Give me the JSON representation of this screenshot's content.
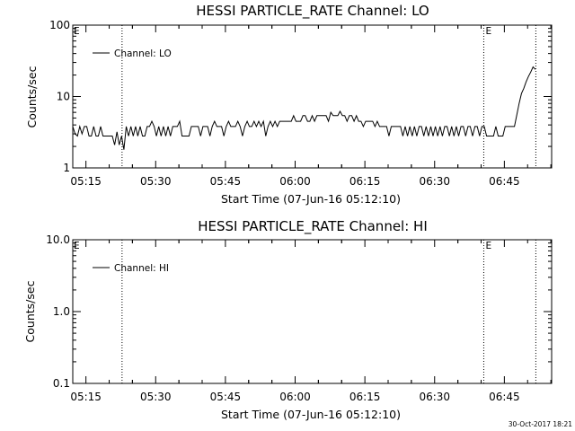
{
  "footer": "30-Oct-2017 18:21",
  "chart_data": [
    {
      "type": "line",
      "title": "HESSI PARTICLE_RATE Channel: LO",
      "xlabel": "Start Time (07-Jun-16 05:12:10)",
      "ylabel": "Counts/sec",
      "y_scale": "log",
      "ylim": [
        1,
        100
      ],
      "y_ticks": [
        "1",
        "10",
        "100"
      ],
      "x_range_min_since_start": [
        0,
        103
      ],
      "x_ticks": [
        {
          "label": "05:15",
          "min": 2.83
        },
        {
          "label": "05:30",
          "min": 17.83
        },
        {
          "label": "05:45",
          "min": 32.83
        },
        {
          "label": "06:00",
          "min": 47.83
        },
        {
          "label": "06:15",
          "min": 62.83
        },
        {
          "label": "06:30",
          "min": 77.83
        },
        {
          "label": "06:45",
          "min": 92.83
        }
      ],
      "markers": [
        {
          "min": 10.6,
          "label": ""
        },
        {
          "min": 88.4,
          "label": "E"
        },
        {
          "min": 99.6,
          "label": ""
        }
      ],
      "edge_label_left": "E",
      "series": [
        {
          "name": "Channel: LO",
          "points": [
            [
              0.0,
              3.8
            ],
            [
              0.5,
              3.0
            ],
            [
              1.0,
              2.8
            ],
            [
              1.5,
              3.8
            ],
            [
              2.0,
              3.0
            ],
            [
              2.5,
              3.8
            ],
            [
              3.0,
              3.8
            ],
            [
              3.5,
              2.8
            ],
            [
              4.0,
              2.8
            ],
            [
              4.5,
              3.8
            ],
            [
              5.0,
              2.8
            ],
            [
              5.5,
              2.8
            ],
            [
              6.0,
              3.8
            ],
            [
              6.5,
              2.8
            ],
            [
              7.0,
              2.8
            ],
            [
              7.5,
              2.8
            ],
            [
              8.0,
              2.8
            ],
            [
              8.5,
              2.8
            ],
            [
              9.0,
              2.1
            ],
            [
              9.5,
              3.2
            ],
            [
              10.0,
              2.1
            ],
            [
              10.5,
              2.8
            ],
            [
              11.0,
              1.8
            ],
            [
              11.5,
              3.8
            ],
            [
              12.0,
              2.8
            ],
            [
              12.5,
              3.8
            ],
            [
              13.0,
              2.8
            ],
            [
              13.5,
              3.8
            ],
            [
              14.0,
              2.8
            ],
            [
              14.5,
              3.8
            ],
            [
              15.0,
              2.8
            ],
            [
              15.5,
              2.8
            ],
            [
              16.0,
              3.8
            ],
            [
              16.5,
              3.8
            ],
            [
              17.0,
              4.5
            ],
            [
              17.5,
              3.8
            ],
            [
              18.0,
              2.8
            ],
            [
              18.5,
              3.8
            ],
            [
              19.0,
              2.8
            ],
            [
              19.5,
              3.8
            ],
            [
              20.0,
              2.8
            ],
            [
              20.5,
              3.8
            ],
            [
              21.0,
              2.8
            ],
            [
              21.5,
              3.8
            ],
            [
              22.0,
              3.8
            ],
            [
              22.5,
              3.8
            ],
            [
              23.0,
              4.5
            ],
            [
              23.5,
              2.8
            ],
            [
              24.0,
              2.8
            ],
            [
              24.5,
              2.8
            ],
            [
              25.0,
              2.8
            ],
            [
              25.5,
              3.8
            ],
            [
              26.0,
              3.8
            ],
            [
              26.5,
              3.8
            ],
            [
              27.0,
              3.8
            ],
            [
              27.5,
              2.8
            ],
            [
              28.0,
              3.8
            ],
            [
              28.5,
              3.8
            ],
            [
              29.0,
              3.8
            ],
            [
              29.5,
              2.8
            ],
            [
              30.0,
              3.8
            ],
            [
              30.5,
              4.5
            ],
            [
              31.0,
              3.8
            ],
            [
              31.5,
              3.8
            ],
            [
              32.0,
              3.8
            ],
            [
              32.5,
              2.8
            ],
            [
              33.0,
              3.8
            ],
            [
              33.5,
              4.5
            ],
            [
              34.0,
              3.8
            ],
            [
              34.5,
              3.8
            ],
            [
              35.0,
              3.8
            ],
            [
              35.5,
              4.5
            ],
            [
              36.0,
              3.8
            ],
            [
              36.5,
              2.8
            ],
            [
              37.0,
              3.8
            ],
            [
              37.5,
              4.5
            ],
            [
              38.0,
              3.8
            ],
            [
              38.5,
              3.8
            ],
            [
              39.0,
              4.5
            ],
            [
              39.5,
              3.8
            ],
            [
              40.0,
              4.5
            ],
            [
              40.5,
              3.8
            ],
            [
              41.0,
              4.5
            ],
            [
              41.5,
              2.8
            ],
            [
              42.0,
              3.8
            ],
            [
              42.5,
              4.5
            ],
            [
              43.0,
              3.8
            ],
            [
              43.5,
              4.5
            ],
            [
              44.0,
              3.8
            ],
            [
              44.5,
              4.5
            ],
            [
              45.0,
              4.5
            ],
            [
              45.5,
              4.5
            ],
            [
              46.0,
              4.5
            ],
            [
              46.5,
              4.5
            ],
            [
              47.0,
              4.5
            ],
            [
              47.5,
              5.4
            ],
            [
              48.0,
              4.5
            ],
            [
              48.5,
              4.5
            ],
            [
              49.0,
              4.5
            ],
            [
              49.5,
              5.4
            ],
            [
              50.0,
              5.4
            ],
            [
              50.5,
              4.5
            ],
            [
              51.0,
              4.5
            ],
            [
              51.5,
              5.4
            ],
            [
              52.0,
              4.5
            ],
            [
              52.5,
              5.4
            ],
            [
              53.0,
              5.4
            ],
            [
              53.5,
              5.4
            ],
            [
              54.0,
              5.4
            ],
            [
              54.5,
              5.4
            ],
            [
              55.0,
              4.5
            ],
            [
              55.5,
              6.0
            ],
            [
              56.0,
              5.4
            ],
            [
              56.5,
              5.4
            ],
            [
              57.0,
              5.4
            ],
            [
              57.5,
              6.2
            ],
            [
              58.0,
              5.4
            ],
            [
              58.5,
              5.4
            ],
            [
              59.0,
              4.5
            ],
            [
              59.5,
              5.4
            ],
            [
              60.0,
              5.4
            ],
            [
              60.5,
              4.5
            ],
            [
              61.0,
              5.4
            ],
            [
              61.5,
              4.5
            ],
            [
              62.0,
              4.5
            ],
            [
              62.5,
              3.8
            ],
            [
              63.0,
              4.5
            ],
            [
              63.5,
              4.5
            ],
            [
              64.0,
              4.5
            ],
            [
              64.5,
              4.5
            ],
            [
              65.0,
              3.8
            ],
            [
              65.5,
              4.5
            ],
            [
              66.0,
              3.8
            ],
            [
              66.5,
              3.8
            ],
            [
              67.0,
              3.8
            ],
            [
              67.5,
              3.8
            ],
            [
              68.0,
              2.8
            ],
            [
              68.5,
              3.8
            ],
            [
              69.0,
              3.8
            ],
            [
              69.5,
              3.8
            ],
            [
              70.0,
              3.8
            ],
            [
              70.5,
              3.8
            ],
            [
              71.0,
              2.8
            ],
            [
              71.5,
              3.8
            ],
            [
              72.0,
              2.8
            ],
            [
              72.5,
              3.8
            ],
            [
              73.0,
              2.8
            ],
            [
              73.5,
              3.8
            ],
            [
              74.0,
              2.8
            ],
            [
              74.5,
              3.8
            ],
            [
              75.0,
              3.8
            ],
            [
              75.5,
              2.8
            ],
            [
              76.0,
              3.8
            ],
            [
              76.5,
              2.8
            ],
            [
              77.0,
              3.8
            ],
            [
              77.5,
              2.8
            ],
            [
              78.0,
              3.8
            ],
            [
              78.5,
              2.8
            ],
            [
              79.0,
              3.8
            ],
            [
              79.5,
              2.8
            ],
            [
              80.0,
              3.8
            ],
            [
              80.5,
              3.8
            ],
            [
              81.0,
              2.8
            ],
            [
              81.5,
              3.8
            ],
            [
              82.0,
              2.8
            ],
            [
              82.5,
              3.8
            ],
            [
              83.0,
              2.8
            ],
            [
              83.5,
              3.8
            ],
            [
              84.0,
              3.8
            ],
            [
              84.5,
              2.8
            ],
            [
              85.0,
              3.8
            ],
            [
              85.5,
              3.8
            ],
            [
              86.0,
              2.8
            ],
            [
              86.5,
              3.8
            ],
            [
              87.0,
              3.8
            ],
            [
              87.5,
              2.8
            ],
            [
              88.0,
              3.8
            ],
            [
              88.5,
              3.8
            ],
            [
              89.0,
              2.8
            ],
            [
              89.5,
              2.8
            ],
            [
              90.0,
              2.8
            ],
            [
              90.5,
              2.8
            ],
            [
              91.0,
              3.8
            ],
            [
              91.5,
              2.8
            ],
            [
              92.0,
              2.8
            ],
            [
              92.5,
              2.8
            ],
            [
              93.0,
              3.8
            ],
            [
              93.5,
              3.8
            ],
            [
              94.0,
              3.8
            ],
            [
              94.5,
              3.8
            ],
            [
              95.0,
              3.8
            ],
            [
              95.5,
              5.5
            ],
            [
              96.0,
              8.0
            ],
            [
              96.5,
              11.0
            ],
            [
              97.0,
              13.0
            ],
            [
              97.5,
              16.0
            ],
            [
              98.0,
              19.0
            ],
            [
              98.5,
              22.0
            ],
            [
              99.0,
              26.0
            ],
            [
              99.5,
              24.0
            ]
          ]
        }
      ]
    },
    {
      "type": "line",
      "title": "HESSI PARTICLE_RATE Channel: HI",
      "xlabel": "Start Time (07-Jun-16 05:12:10)",
      "ylabel": "Counts/sec",
      "y_scale": "log",
      "ylim": [
        0.1,
        10
      ],
      "y_ticks": [
        "0.1",
        "1.0",
        "10.0"
      ],
      "x_range_min_since_start": [
        0,
        103
      ],
      "x_ticks": [
        {
          "label": "05:15",
          "min": 2.83
        },
        {
          "label": "05:30",
          "min": 17.83
        },
        {
          "label": "05:45",
          "min": 32.83
        },
        {
          "label": "06:00",
          "min": 47.83
        },
        {
          "label": "06:15",
          "min": 62.83
        },
        {
          "label": "06:30",
          "min": 77.83
        },
        {
          "label": "06:45",
          "min": 92.83
        }
      ],
      "markers": [
        {
          "min": 10.6,
          "label": ""
        },
        {
          "min": 88.4,
          "label": "E"
        },
        {
          "min": 99.6,
          "label": ""
        }
      ],
      "edge_label_left": "E",
      "series": [
        {
          "name": "Channel: HI",
          "points": []
        }
      ]
    }
  ]
}
